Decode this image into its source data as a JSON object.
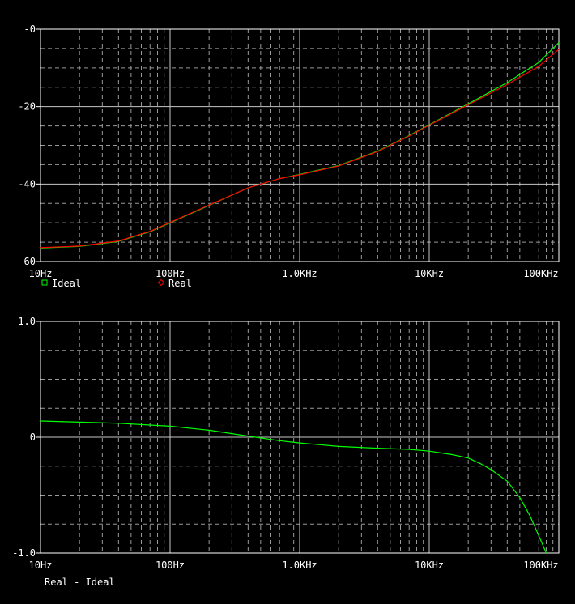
{
  "chart_data": [
    {
      "type": "line",
      "x_scale": "log",
      "xlim": [
        10,
        100000
      ],
      "ylim": [
        -60,
        0
      ],
      "x_ticks": [
        {
          "value": 10,
          "label": "10Hz"
        },
        {
          "value": 100,
          "label": "100Hz"
        },
        {
          "value": 1000,
          "label": "1.0KHz"
        },
        {
          "value": 10000,
          "label": "10KHz"
        },
        {
          "value": 100000,
          "label": "100KHz"
        }
      ],
      "y_ticks": [
        {
          "value": 0,
          "label": "-0"
        },
        {
          "value": -20,
          "label": "-20"
        },
        {
          "value": -40,
          "label": "-40"
        },
        {
          "value": -60,
          "label": "-60"
        }
      ],
      "grid": true,
      "legend_position": "bottom-left",
      "series": [
        {
          "name": "Ideal",
          "color": "#00ff00",
          "marker": "square",
          "x": [
            10,
            20,
            40,
            70,
            100,
            200,
            400,
            700,
            1000,
            2000,
            4000,
            7000,
            10000,
            20000,
            40000,
            70000,
            100000
          ],
          "y": [
            -56.5,
            -56.1,
            -54.8,
            -52.3,
            -50.0,
            -45.5,
            -41.0,
            -38.6,
            -37.5,
            -35.2,
            -31.5,
            -27.5,
            -24.7,
            -19.3,
            -13.8,
            -8.6,
            -3.5
          ]
        },
        {
          "name": "Real",
          "color": "#ff0000",
          "marker": "diamond",
          "x": [
            10,
            20,
            40,
            70,
            100,
            200,
            400,
            700,
            1000,
            2000,
            4000,
            7000,
            10000,
            20000,
            40000,
            70000,
            100000
          ],
          "y": [
            -56.4,
            -56.0,
            -54.7,
            -52.2,
            -49.9,
            -45.4,
            -41.0,
            -38.6,
            -37.6,
            -35.3,
            -31.6,
            -27.6,
            -24.8,
            -19.5,
            -14.3,
            -9.6,
            -5.2
          ]
        }
      ]
    },
    {
      "type": "line",
      "x_scale": "log",
      "xlim": [
        10,
        100000
      ],
      "ylim": [
        -1.0,
        1.0
      ],
      "x_ticks": [
        {
          "value": 10,
          "label": "10Hz"
        },
        {
          "value": 100,
          "label": "100Hz"
        },
        {
          "value": 1000,
          "label": "1.0KHz"
        },
        {
          "value": 10000,
          "label": "10KHz"
        },
        {
          "value": 100000,
          "label": "100KHz"
        }
      ],
      "y_ticks": [
        {
          "value": 1.0,
          "label": "1.0"
        },
        {
          "value": 0,
          "label": "0"
        },
        {
          "value": -1.0,
          "label": "-1.0"
        }
      ],
      "grid": true,
      "series": [
        {
          "name": "Real - Ideal",
          "color": "#00ff00",
          "x": [
            10,
            20,
            40,
            70,
            100,
            200,
            400,
            700,
            1000,
            2000,
            4000,
            7000,
            10000,
            15000,
            20000,
            25000,
            30000,
            40000,
            50000,
            60000,
            70000,
            80000
          ],
          "y": [
            0.14,
            0.13,
            0.12,
            0.105,
            0.095,
            0.06,
            0.01,
            -0.03,
            -0.05,
            -0.08,
            -0.095,
            -0.105,
            -0.12,
            -0.15,
            -0.18,
            -0.23,
            -0.28,
            -0.38,
            -0.52,
            -0.68,
            -0.85,
            -1.0
          ]
        }
      ]
    }
  ]
}
